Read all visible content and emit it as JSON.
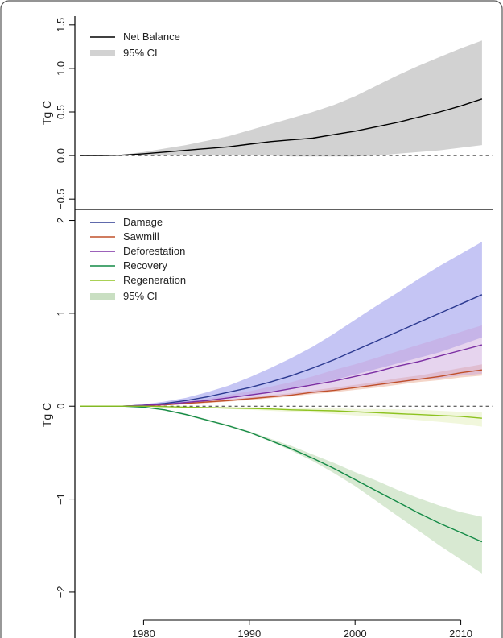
{
  "chart_data": [
    {
      "type": "area",
      "title": "",
      "xlabel": "",
      "ylabel": "Tg C",
      "xlim": [
        1973.5,
        2013
      ],
      "ylim": [
        -0.6,
        1.6
      ],
      "yticks": [
        -0.5,
        0.0,
        0.5,
        1.0,
        1.5
      ],
      "ytick_labels": [
        "−0.5",
        "0.0",
        "0.5",
        "1.0",
        "1.5"
      ],
      "zero_line": "dashed",
      "legend_position": "top-left",
      "x": [
        1974,
        1976,
        1978,
        1980,
        1982,
        1984,
        1986,
        1988,
        1990,
        1992,
        1994,
        1996,
        1998,
        2000,
        2002,
        2004,
        2006,
        2008,
        2010,
        2012
      ],
      "series": [
        {
          "name": "Net Balance",
          "color": "#000000",
          "values": [
            0,
            0,
            0.005,
            0.02,
            0.04,
            0.06,
            0.08,
            0.1,
            0.13,
            0.16,
            0.18,
            0.2,
            0.24,
            0.28,
            0.33,
            0.38,
            0.44,
            0.5,
            0.57,
            0.65
          ],
          "ci_label": "95% CI",
          "ci_color": "#d2d2d2",
          "ci_lower": [
            0,
            0,
            0,
            0,
            0,
            0,
            0,
            0,
            0,
            0,
            -0.01,
            -0.01,
            -0.01,
            -0.01,
            0,
            0.02,
            0.04,
            0.06,
            0.09,
            0.12
          ],
          "ci_upper": [
            0,
            0,
            0.01,
            0.04,
            0.08,
            0.12,
            0.17,
            0.22,
            0.29,
            0.36,
            0.43,
            0.5,
            0.58,
            0.68,
            0.8,
            0.92,
            1.03,
            1.13,
            1.23,
            1.32
          ]
        }
      ]
    },
    {
      "type": "area",
      "title": "",
      "xlabel": "",
      "ylabel": "Tg C",
      "xlim": [
        1973.5,
        2013
      ],
      "ylim": [
        -2.2,
        2.1
      ],
      "yticks": [
        -2,
        -1,
        0,
        1,
        2
      ],
      "ytick_labels": [
        "−2",
        "−1",
        "0",
        "1",
        "2"
      ],
      "xticks": [
        1980,
        1990,
        2000,
        2010
      ],
      "xtick_labels": [
        "1980",
        "1990",
        "2000",
        "2010"
      ],
      "zero_line": "dashed",
      "legend_position": "top-left",
      "ci_label": "95% CI",
      "ci_legend_color": "#c9dfc2",
      "x": [
        1974,
        1976,
        1978,
        1980,
        1982,
        1984,
        1986,
        1988,
        1990,
        1992,
        1994,
        1996,
        1998,
        2000,
        2002,
        2004,
        2006,
        2008,
        2010,
        2012
      ],
      "series": [
        {
          "name": "Damage",
          "color": "#2b3990",
          "ci_color": "#7f7fe6",
          "values": [
            0,
            0,
            0,
            0.01,
            0.03,
            0.06,
            0.1,
            0.15,
            0.2,
            0.26,
            0.33,
            0.41,
            0.5,
            0.6,
            0.7,
            0.8,
            0.9,
            1.0,
            1.1,
            1.2
          ],
          "ci_lower": [
            0,
            0,
            0,
            0.005,
            0.02,
            0.04,
            0.06,
            0.09,
            0.12,
            0.15,
            0.19,
            0.24,
            0.28,
            0.34,
            0.4,
            0.46,
            0.52,
            0.58,
            0.66,
            0.74
          ],
          "ci_upper": [
            0,
            0,
            0,
            0.02,
            0.05,
            0.09,
            0.15,
            0.22,
            0.31,
            0.41,
            0.52,
            0.64,
            0.78,
            0.93,
            1.08,
            1.22,
            1.37,
            1.51,
            1.64,
            1.77
          ]
        },
        {
          "name": "Sawmill",
          "color": "#c0502a",
          "ci_color": "#e6a184",
          "values": [
            0,
            0,
            0,
            0.005,
            0.015,
            0.03,
            0.045,
            0.06,
            0.08,
            0.1,
            0.12,
            0.15,
            0.17,
            0.2,
            0.23,
            0.26,
            0.29,
            0.32,
            0.36,
            0.39
          ],
          "ci_lower": [
            0,
            0,
            0,
            0,
            0.01,
            0.02,
            0.035,
            0.05,
            0.065,
            0.085,
            0.105,
            0.13,
            0.15,
            0.175,
            0.2,
            0.23,
            0.26,
            0.28,
            0.31,
            0.33
          ],
          "ci_upper": [
            0,
            0,
            0,
            0.01,
            0.02,
            0.04,
            0.055,
            0.075,
            0.095,
            0.12,
            0.14,
            0.17,
            0.2,
            0.23,
            0.26,
            0.3,
            0.33,
            0.37,
            0.41,
            0.45
          ]
        },
        {
          "name": "Deforestation",
          "color": "#7b2ea3",
          "ci_color": "#c89fd9",
          "values": [
            0,
            0,
            0,
            0.01,
            0.02,
            0.04,
            0.06,
            0.09,
            0.12,
            0.15,
            0.19,
            0.23,
            0.27,
            0.32,
            0.37,
            0.43,
            0.48,
            0.54,
            0.6,
            0.66
          ],
          "ci_lower": [
            0,
            0,
            0,
            0.005,
            0.015,
            0.03,
            0.045,
            0.06,
            0.08,
            0.1,
            0.12,
            0.14,
            0.17,
            0.2,
            0.22,
            0.25,
            0.28,
            0.3,
            0.33,
            0.35
          ],
          "ci_upper": [
            0,
            0,
            0,
            0.015,
            0.03,
            0.05,
            0.08,
            0.12,
            0.16,
            0.21,
            0.26,
            0.32,
            0.39,
            0.45,
            0.52,
            0.59,
            0.66,
            0.73,
            0.8,
            0.87
          ]
        },
        {
          "name": "Recovery",
          "color": "#138a46",
          "ci_color": "#a9cf9c",
          "values": [
            0,
            0,
            0,
            -0.01,
            -0.04,
            -0.09,
            -0.15,
            -0.21,
            -0.28,
            -0.37,
            -0.46,
            -0.56,
            -0.67,
            -0.79,
            -0.91,
            -1.03,
            -1.15,
            -1.26,
            -1.36,
            -1.46
          ],
          "ci_lower": [
            0,
            0,
            0,
            -0.01,
            -0.05,
            -0.1,
            -0.16,
            -0.22,
            -0.29,
            -0.38,
            -0.48,
            -0.59,
            -0.72,
            -0.86,
            -1.02,
            -1.18,
            -1.34,
            -1.5,
            -1.65,
            -1.8
          ],
          "ci_upper": [
            0,
            0,
            0,
            -0.005,
            -0.035,
            -0.08,
            -0.14,
            -0.2,
            -0.27,
            -0.35,
            -0.43,
            -0.52,
            -0.61,
            -0.71,
            -0.8,
            -0.9,
            -0.99,
            -1.07,
            -1.14,
            -1.19
          ]
        },
        {
          "name": "Regeneration",
          "color": "#8dc21f",
          "ci_color": "#e0eeb2",
          "values": [
            0,
            0,
            0,
            0,
            -0.005,
            -0.01,
            -0.015,
            -0.02,
            -0.025,
            -0.03,
            -0.04,
            -0.045,
            -0.05,
            -0.06,
            -0.07,
            -0.08,
            -0.09,
            -0.1,
            -0.11,
            -0.13
          ],
          "ci_lower": [
            0,
            0,
            0,
            0,
            -0.005,
            -0.01,
            -0.02,
            -0.03,
            -0.04,
            -0.05,
            -0.06,
            -0.07,
            -0.085,
            -0.1,
            -0.11,
            -0.13,
            -0.15,
            -0.17,
            -0.19,
            -0.22
          ],
          "ci_upper": [
            0,
            0,
            0,
            0,
            0,
            -0.005,
            -0.01,
            -0.01,
            -0.01,
            -0.015,
            -0.02,
            -0.02,
            -0.02,
            -0.03,
            -0.03,
            -0.035,
            -0.04,
            -0.05,
            -0.06,
            -0.06
          ]
        }
      ]
    }
  ]
}
